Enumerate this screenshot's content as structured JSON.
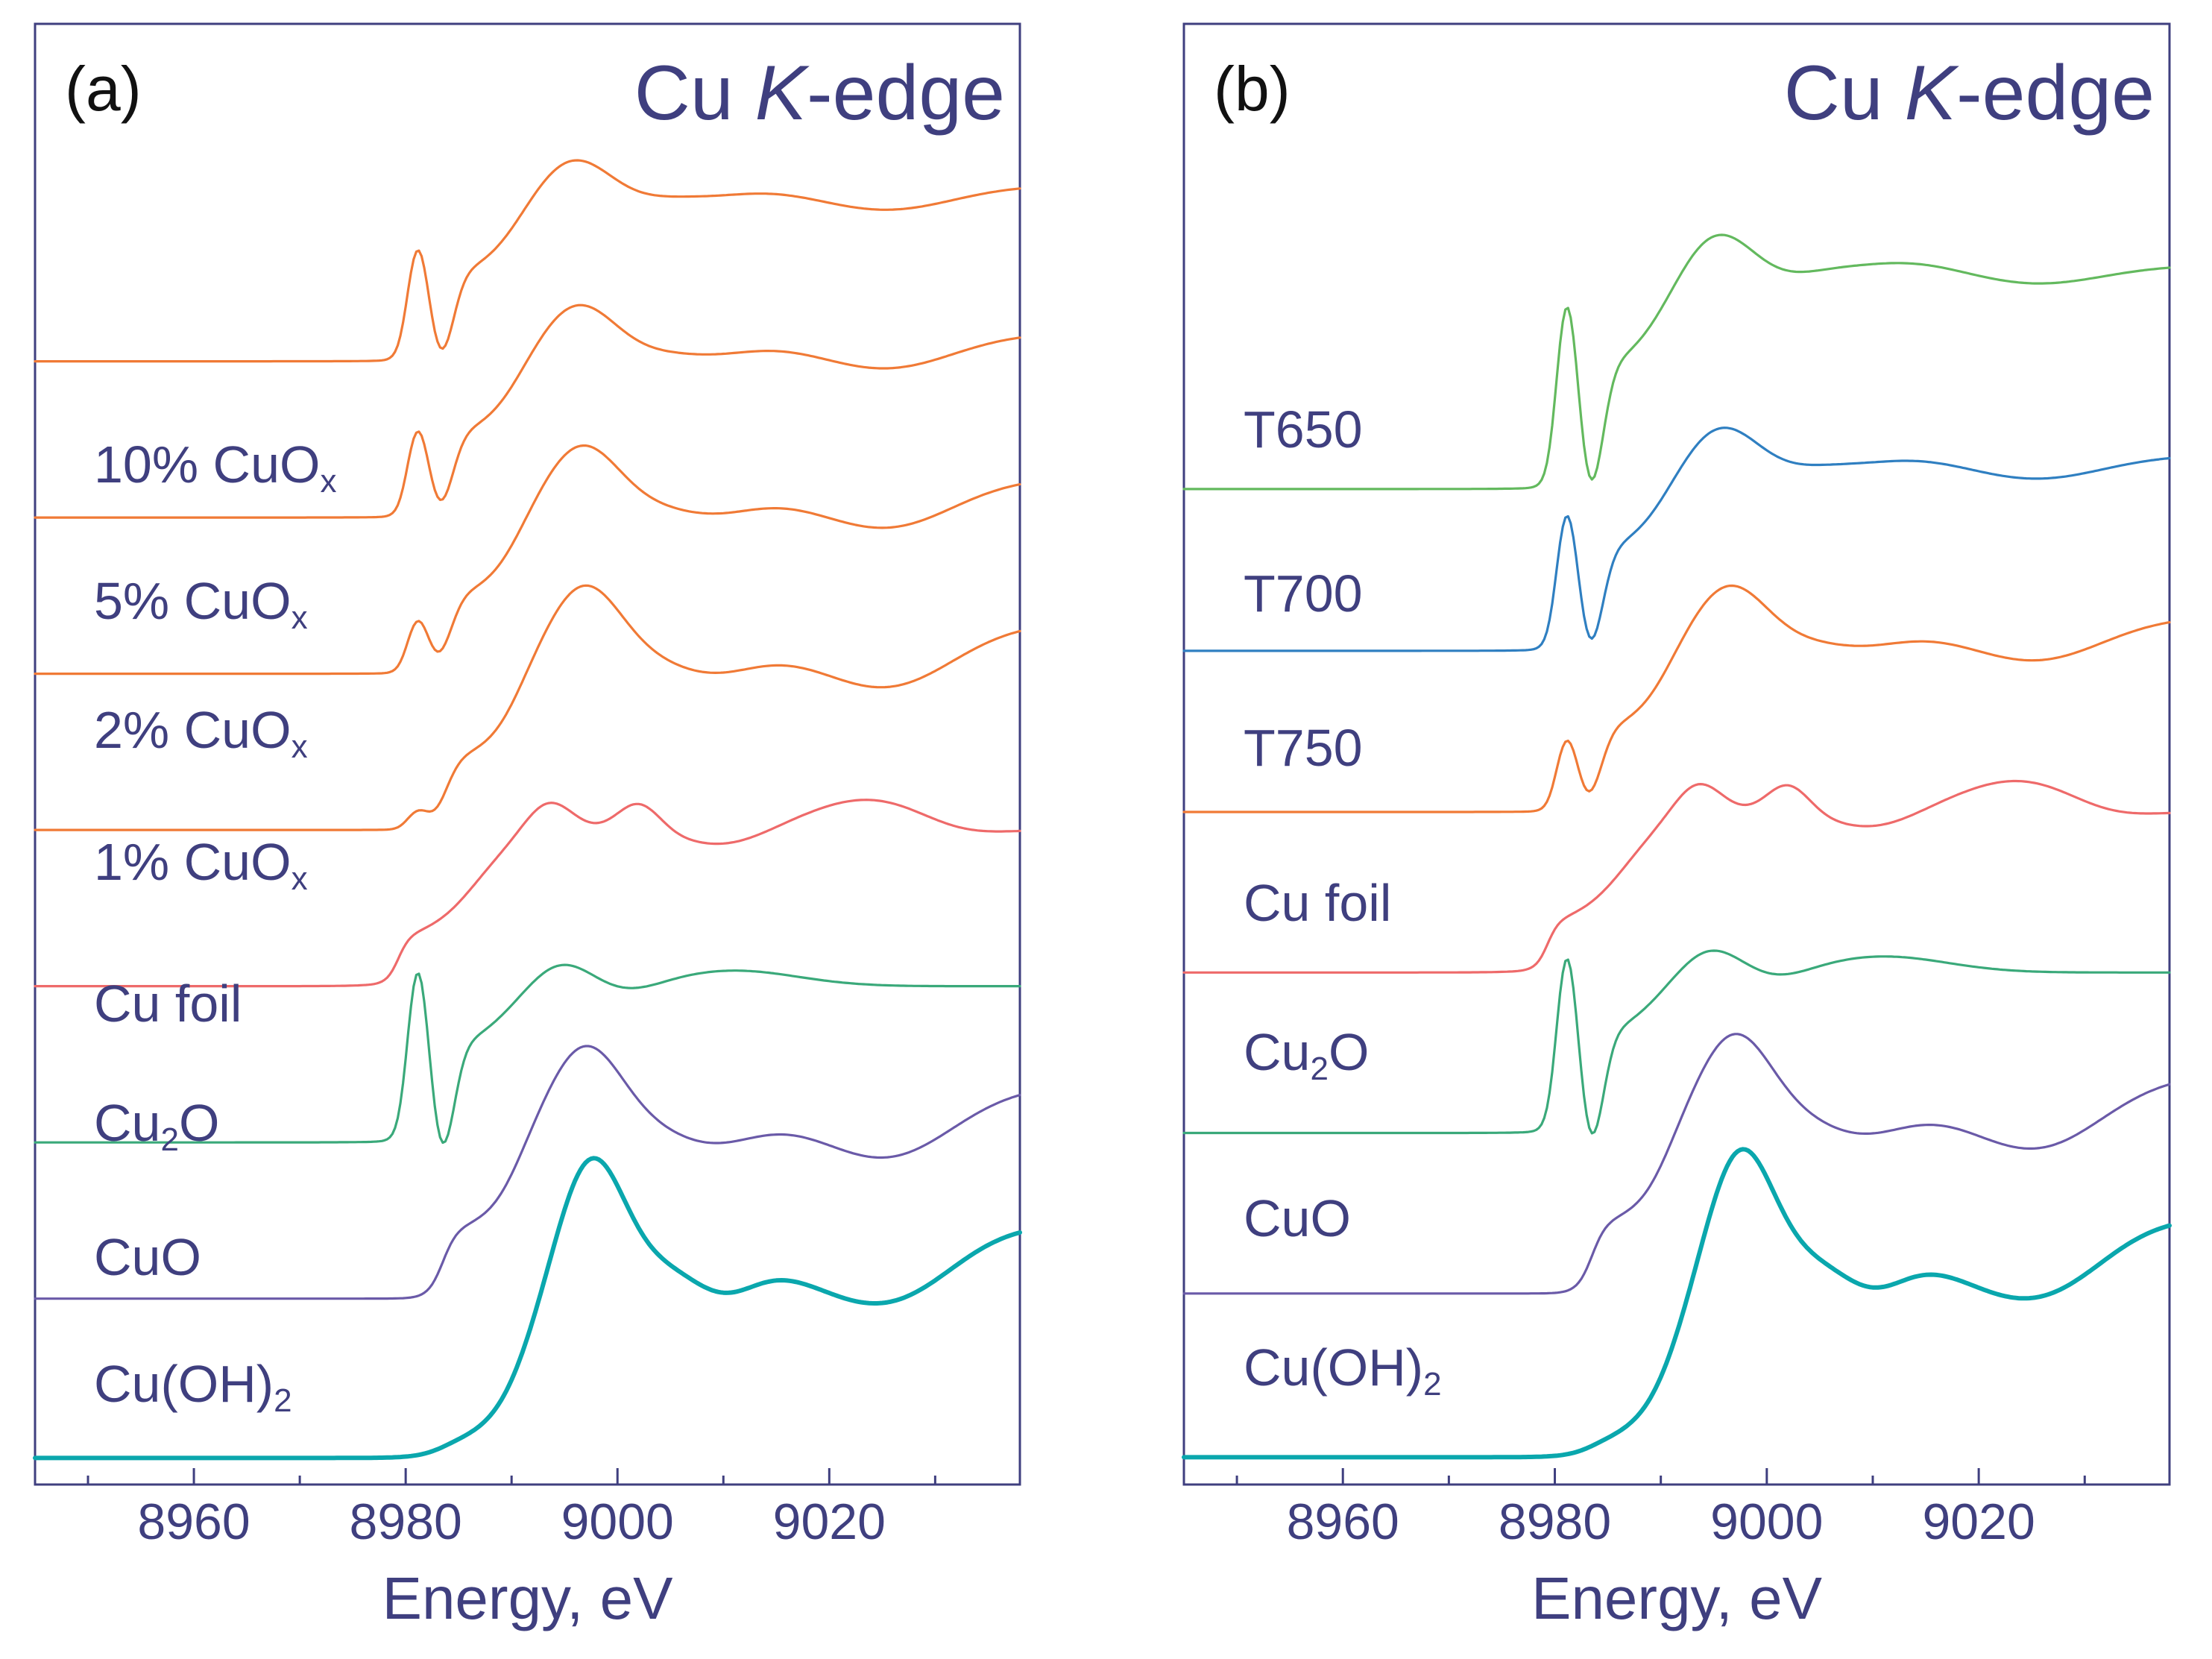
{
  "figure": {
    "colors": {
      "axis": "#3f3f7f",
      "label": "#3f3f7f",
      "orange": "#f07a36",
      "red": "#ee6a6a",
      "green": "#3aa97a",
      "purple": "#6a5aa8",
      "teal": "#0aa7ad",
      "lightgreen": "#63b95e",
      "blue": "#2f7fc1"
    }
  },
  "chart_data": [
    {
      "panel": "(a)",
      "type": "line",
      "title": "Cu K-edge",
      "title_parts": [
        "Cu ",
        "K",
        "-edge"
      ],
      "xlabel": "Energy, eV",
      "ylabel": "",
      "xlim": [
        8945,
        9038
      ],
      "x_ticks": [
        8960,
        8980,
        9000,
        9020
      ],
      "x_tick_labels": [
        "8960",
        "8980",
        "9000",
        "9020"
      ],
      "x_minor_ticks": [
        8950,
        8970,
        8990,
        9010,
        9030
      ],
      "ylim": [
        -0.15,
        9.2
      ],
      "y_unit": "normalized absorption (stacked, offsets in data units)",
      "series": [
        {
          "name": "Cu(OH)2",
          "label_main": "Cu(OH)",
          "label_sub": "2",
          "label_tail": "",
          "profile": "CuOH2",
          "offset": 0.0,
          "scale": 1.0,
          "color": "#0aa7ad",
          "width": 3.0
        },
        {
          "name": "CuO",
          "label_main": "CuO",
          "label_sub": "",
          "label_tail": "",
          "profile": "CuO",
          "offset": 1.0,
          "scale": 1.0,
          "color": "#6a5aa8",
          "width": 1.6
        },
        {
          "name": "Cu2O",
          "label_main": "Cu",
          "label_sub": "2",
          "label_tail": "O",
          "profile": "Cu2O",
          "offset": 2.0,
          "scale": 1.0,
          "color": "#3aa97a",
          "width": 1.6
        },
        {
          "name": "Cu foil",
          "label_main": "Cu foil",
          "label_sub": "",
          "label_tail": "",
          "profile": "CuFoil",
          "offset": 3.0,
          "scale": 1.0,
          "color": "#ee6a6a",
          "width": 1.6
        },
        {
          "name": "1% CuOx",
          "label_main": "1% CuO",
          "label_sub": "x",
          "label_tail": "",
          "profile": "mix",
          "mix": 0.9,
          "offset": 4.0,
          "scale": 1.0,
          "color": "#f07a36",
          "width": 1.6
        },
        {
          "name": "2% CuOx",
          "label_main": "2% CuO",
          "label_sub": "x",
          "label_tail": "",
          "profile": "mix",
          "mix": 0.7,
          "offset": 5.0,
          "scale": 1.0,
          "color": "#f07a36",
          "width": 1.6
        },
        {
          "name": "5% CuOx",
          "label_main": "5% CuO",
          "label_sub": "x",
          "label_tail": "",
          "profile": "mix",
          "mix": 0.5,
          "offset": 6.0,
          "scale": 1.0,
          "color": "#f07a36",
          "width": 1.6
        },
        {
          "name": "10% CuOx",
          "label_main": "10% CuO",
          "label_sub": "x",
          "label_tail": "",
          "profile": "mix",
          "mix": 0.35,
          "offset": 7.0,
          "scale": 1.0,
          "color": "#f07a36",
          "width": 1.6
        }
      ]
    },
    {
      "panel": "(b)",
      "type": "line",
      "title": "Cu K-edge",
      "title_parts": [
        "Cu ",
        "K",
        "-edge"
      ],
      "xlabel": "Energy, eV",
      "ylabel": "",
      "xlim": [
        8945,
        9038
      ],
      "x_ticks": [
        8960,
        8980,
        9000,
        9020
      ],
      "x_tick_labels": [
        "8960",
        "8980",
        "9000",
        "9020"
      ],
      "x_minor_ticks": [
        8950,
        8970,
        8990,
        9010,
        9030
      ],
      "ylim": [
        -0.15,
        8.95
      ],
      "y_unit": "normalized absorption (stacked, offsets in data units)",
      "series": [
        {
          "name": "Cu(OH)2",
          "label_main": "Cu(OH)",
          "label_sub": "2",
          "label_tail": "",
          "profile": "CuOH2",
          "offset": 0.0,
          "scale": 1.0,
          "color": "#0aa7ad",
          "width": 3.0
        },
        {
          "name": "CuO",
          "label_main": "CuO",
          "label_sub": "",
          "label_tail": "",
          "profile": "CuO",
          "offset": 1.0,
          "scale": 1.0,
          "color": "#6a5aa8",
          "width": 1.6
        },
        {
          "name": "Cu2O",
          "label_main": "Cu",
          "label_sub": "2",
          "label_tail": "O",
          "profile": "Cu2O",
          "offset": 2.0,
          "scale": 1.0,
          "color": "#3aa97a",
          "width": 1.6
        },
        {
          "name": "Cu foil",
          "label_main": "Cu foil",
          "label_sub": "",
          "label_tail": "",
          "profile": "CuFoil",
          "offset": 3.0,
          "scale": 1.0,
          "color": "#ee6a6a",
          "width": 1.6
        },
        {
          "name": "T750",
          "label_main": "T750",
          "label_sub": "",
          "label_tail": "",
          "profile": "mix",
          "mix": 0.6,
          "offset": 4.0,
          "scale": 1.0,
          "color": "#f07a36",
          "width": 1.6
        },
        {
          "name": "T700",
          "label_main": "T700",
          "label_sub": "",
          "label_tail": "",
          "profile": "mix",
          "mix": 0.3,
          "offset": 5.0,
          "scale": 1.1,
          "color": "#2f7fc1",
          "width": 1.6
        },
        {
          "name": "T650",
          "label_main": "T650",
          "label_sub": "",
          "label_tail": "",
          "profile": "mix",
          "mix": 0.2,
          "offset": 6.0,
          "scale": 1.3,
          "color": "#63b95e",
          "width": 1.6
        }
      ]
    }
  ]
}
